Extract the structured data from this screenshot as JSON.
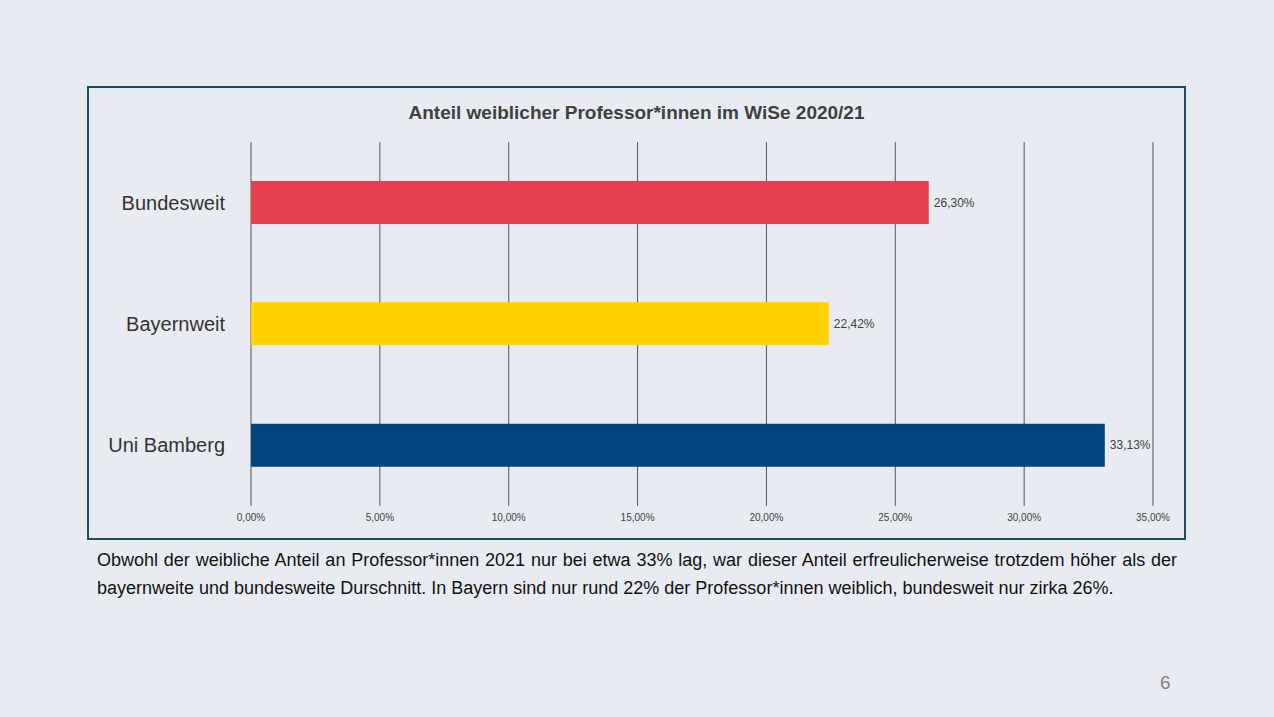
{
  "chart_data": {
    "type": "bar",
    "title": "Anteil weiblicher Professor*innen im WiSe 2020/21",
    "orientation": "horizontal",
    "categories": [
      "Bundesweit",
      "Bayernweit",
      "Uni Bamberg"
    ],
    "values": [
      26.3,
      22.42,
      33.13
    ],
    "value_labels": [
      "26,30%",
      "22,42%",
      "33,13%"
    ],
    "colors": [
      "#e5424f",
      "#ffd200",
      "#00457d"
    ],
    "xlim": [
      0,
      35
    ],
    "xticks": [
      {
        "value": 0,
        "label": "0,00%"
      },
      {
        "value": 5,
        "label": "5,00%"
      },
      {
        "value": 10,
        "label": "10,00%"
      },
      {
        "value": 15,
        "label": "15,00%"
      },
      {
        "value": 20,
        "label": "20,00%"
      },
      {
        "value": 25,
        "label": "25,00%"
      },
      {
        "value": 30,
        "label": "30,00%"
      },
      {
        "value": 35,
        "label": "35,00%"
      }
    ],
    "grid": true,
    "data_labels": true
  },
  "caption": "Obwohl der weibliche Anteil an Professor*innen 2021 nur bei etwa 33% lag, war dieser Anteil erfreulicherweise trotzdem höher als der bayernweite und bundesweite Durschnitt. In Bayern sind nur rund 22% der Professor*innen weiblich, bundesweit nur zirka 26%.",
  "page_number": 6
}
